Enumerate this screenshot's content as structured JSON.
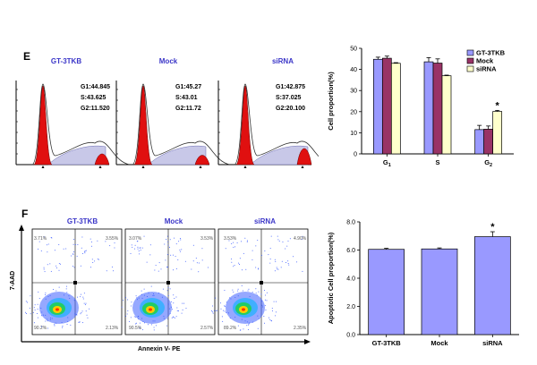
{
  "panels": {
    "e_label": "E",
    "f_label": "F"
  },
  "histograms": [
    {
      "title": "GT-3TKB",
      "g1": "G1:44.845",
      "s": "S:43.625",
      "g2": "G2:11.520"
    },
    {
      "title": "Mock",
      "g1": "G1:45.27",
      "s": "S:43.01",
      "g2": "G2:11.72"
    },
    {
      "title": "siRNA",
      "g1": "G1:42.875",
      "s": "S:37.025",
      "g2": "G2:20.100"
    }
  ],
  "flow": {
    "y_label": "7-AAD",
    "x_label": "Annexin V- PE",
    "plots": [
      {
        "title": "GT-3TKB",
        "ul": "3.71%",
        "ur": "3.55%",
        "ll": "90.2%",
        "lr": "2.13%"
      },
      {
        "title": "Mock",
        "ul": "3.07%",
        "ur": "3.53%",
        "ll": "90.5%",
        "lr": "2.57%"
      },
      {
        "title": "siRNA",
        "ul": "3.53%",
        "ur": "4.90%",
        "ll": "89.2%",
        "lr": "2.35%"
      }
    ]
  },
  "chart_data": [
    {
      "type": "bar",
      "ylabel": "Cell proportion(%)",
      "categories": [
        "G1",
        "S",
        "G2"
      ],
      "ylim": [
        0,
        50
      ],
      "yticks": [
        "0",
        "10",
        "20",
        "30",
        "40",
        "50"
      ],
      "series": [
        {
          "name": "GT-3TKB",
          "color": "#9999ff",
          "values": [
            44.8,
            43.6,
            11.5
          ],
          "errors": [
            1.0,
            2.0,
            2.0
          ]
        },
        {
          "name": "Mock",
          "color": "#993366",
          "values": [
            45.3,
            43.0,
            11.7
          ],
          "errors": [
            1.0,
            2.0,
            1.5
          ]
        },
        {
          "name": "siRNA",
          "color": "#ffffcc",
          "values": [
            42.9,
            37.0,
            20.1
          ],
          "errors": [
            0.3,
            0.3,
            0.5
          ]
        }
      ],
      "annotations": [
        {
          "category": "G2",
          "series": "siRNA",
          "text": "*"
        }
      ],
      "legend": "top-right",
      "grid": false
    },
    {
      "type": "bar",
      "ylabel": "Apoptotic Cell proportion(%)",
      "categories": [
        "GT-3TKB",
        "Mock",
        "siRNA"
      ],
      "ylim": [
        0,
        8
      ],
      "yticks": [
        "0.0",
        "2.0",
        "4.0",
        "6.0",
        "8.0"
      ],
      "series": [
        {
          "color": "#9999ff",
          "values": [
            6.05,
            6.08,
            6.95
          ],
          "errors": [
            0.07,
            0.07,
            0.35
          ]
        }
      ],
      "annotations": [
        {
          "category": "siRNA",
          "text": "*"
        }
      ],
      "grid": false
    }
  ]
}
